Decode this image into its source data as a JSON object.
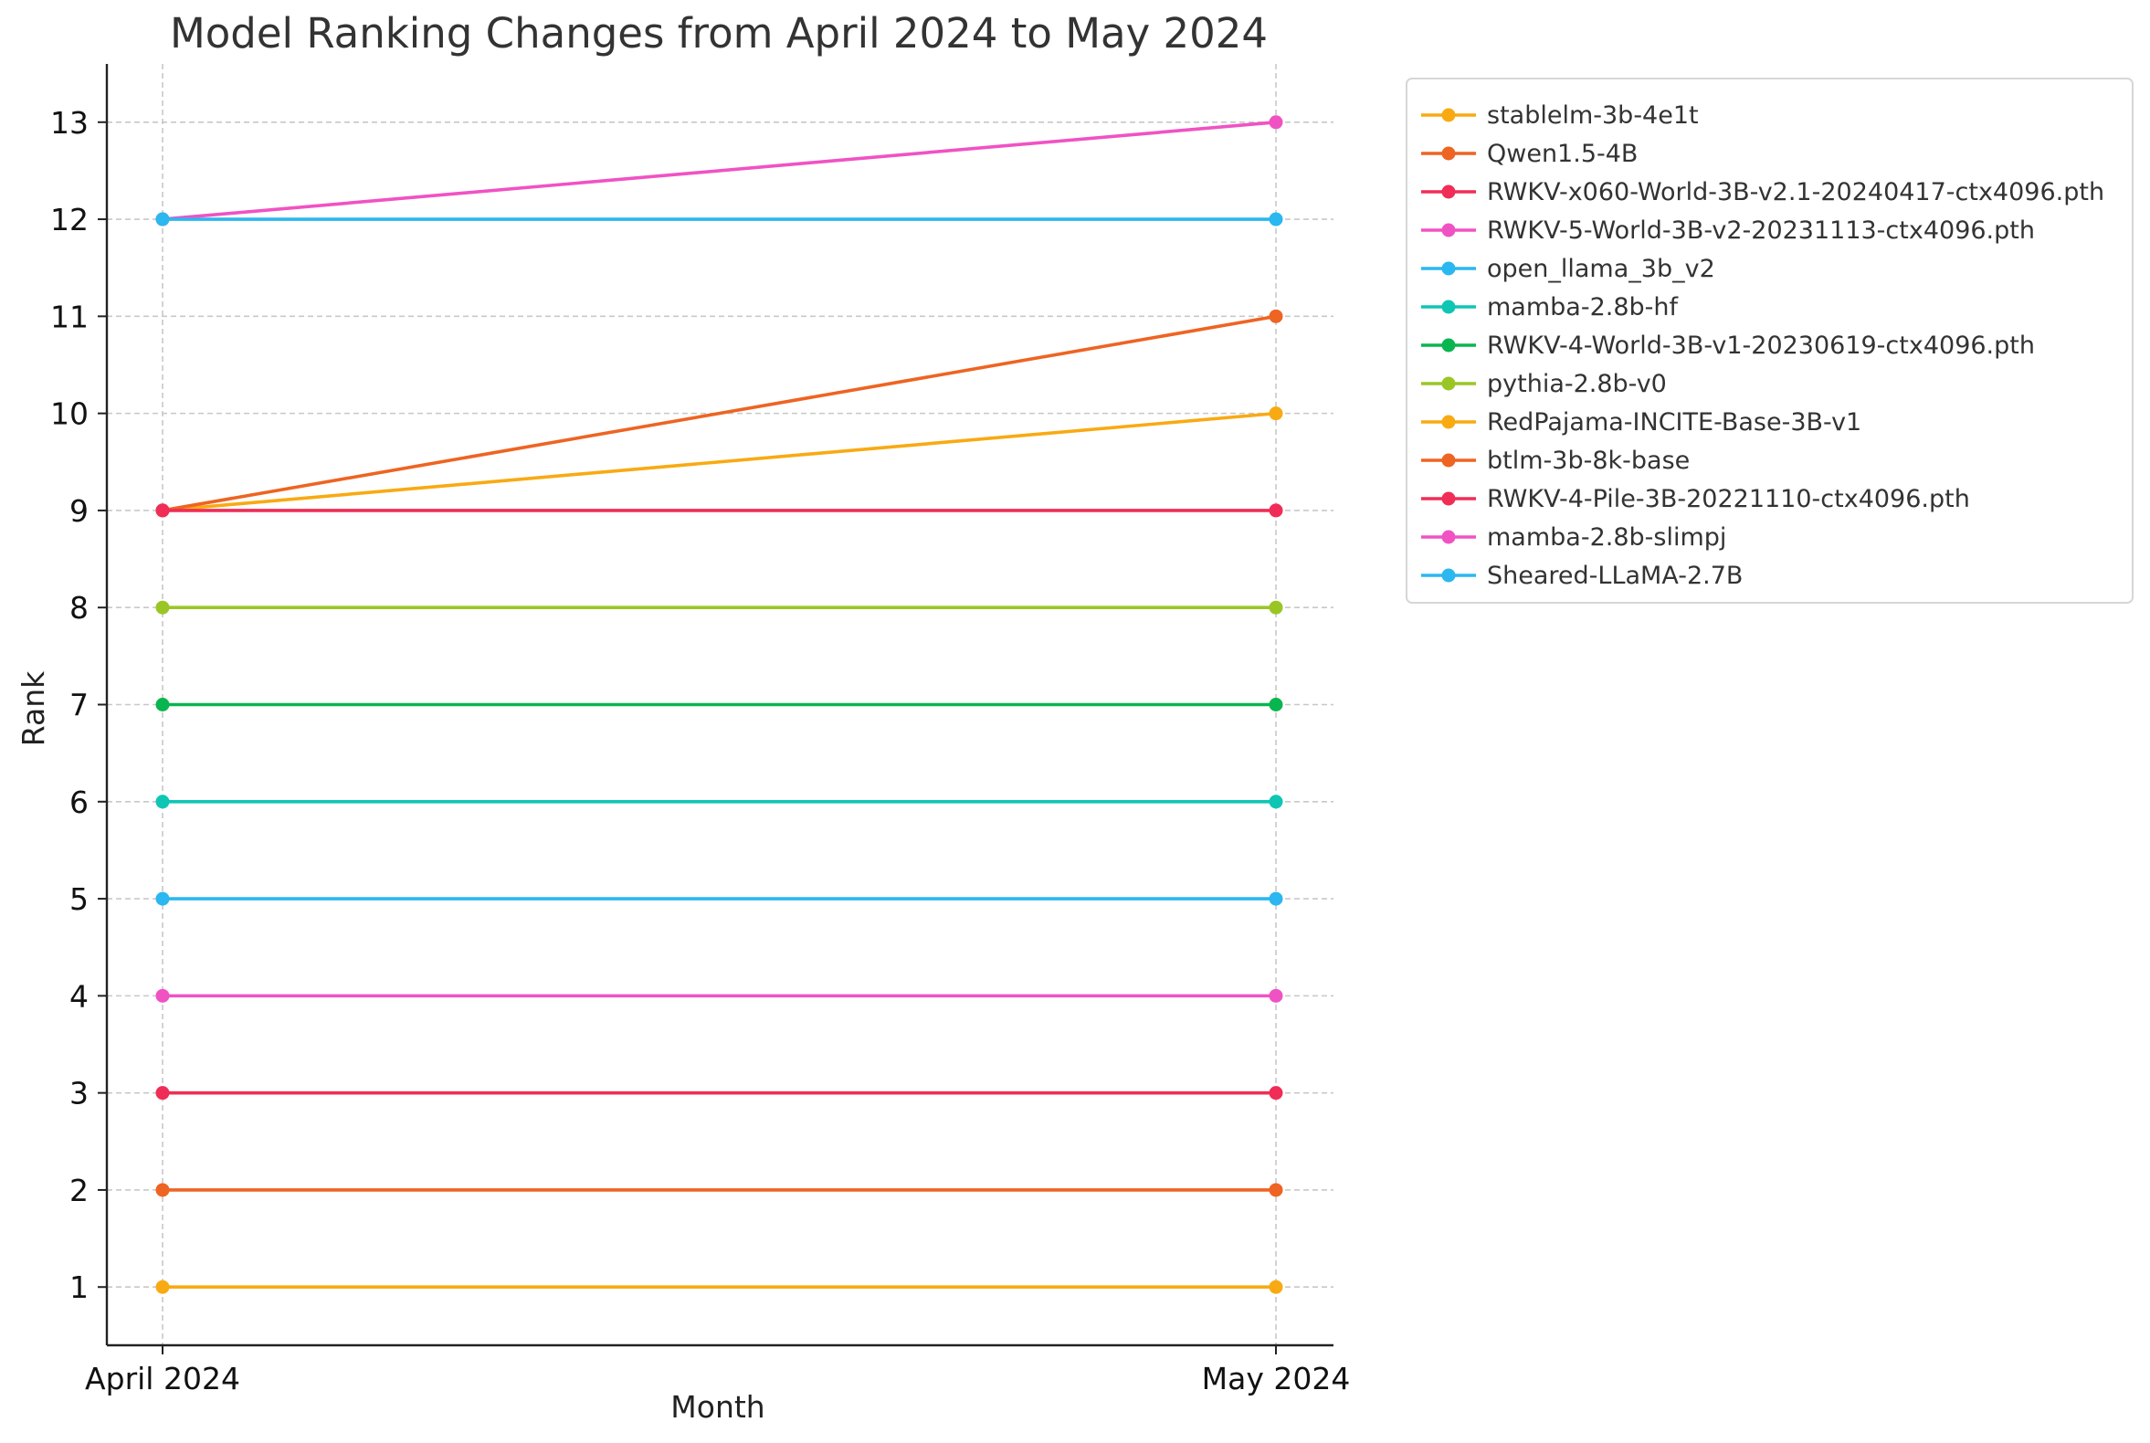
{
  "chart_data": {
    "type": "line",
    "title": "Model Ranking Changes from April 2024 to May 2024",
    "xlabel": "Month",
    "ylabel": "Rank",
    "categories": [
      "April 2024",
      "May 2024"
    ],
    "y_ticks": [
      "1",
      "2",
      "3",
      "4",
      "5",
      "6",
      "7",
      "8",
      "9",
      "10",
      "11",
      "12",
      "13"
    ],
    "ylim": [
      13.6,
      0.4
    ],
    "y_inverted": true,
    "grid": true,
    "legend_position": "outside-top-right",
    "series": [
      {
        "name": "stablelm-3b-4e1t",
        "color": "#f8aa13",
        "values": [
          1,
          1
        ]
      },
      {
        "name": "Qwen1.5-4B",
        "color": "#ee6422",
        "values": [
          2,
          2
        ]
      },
      {
        "name": "RWKV-x060-World-3B-v2.1-20240417-ctx4096.pth",
        "color": "#ef2d56",
        "values": [
          3,
          3
        ]
      },
      {
        "name": "RWKV-5-World-3B-v2-20231113-ctx4096.pth",
        "color": "#f052c4",
        "values": [
          4,
          4
        ]
      },
      {
        "name": "open_llama_3b_v2",
        "color": "#2bb7ef",
        "values": [
          5,
          5
        ]
      },
      {
        "name": "mamba-2.8b-hf",
        "color": "#0fc6b4",
        "values": [
          6,
          6
        ]
      },
      {
        "name": "RWKV-4-World-3B-v1-20230619-ctx4096.pth",
        "color": "#09b54f",
        "values": [
          7,
          7
        ]
      },
      {
        "name": "pythia-2.8b-v0",
        "color": "#9ac625",
        "values": [
          8,
          8
        ]
      },
      {
        "name": "RedPajama-INCITE-Base-3B-v1",
        "color": "#f8aa13",
        "values": [
          9,
          10
        ]
      },
      {
        "name": "btlm-3b-8k-base",
        "color": "#ee6422",
        "values": [
          9,
          11
        ]
      },
      {
        "name": "RWKV-4-Pile-3B-20221110-ctx4096.pth",
        "color": "#ef2d56",
        "values": [
          9,
          9
        ]
      },
      {
        "name": "mamba-2.8b-slimpj",
        "color": "#f052c4",
        "values": [
          12,
          13
        ]
      },
      {
        "name": "Sheared-LLaMA-2.7B",
        "color": "#2bb7ef",
        "values": [
          12,
          12
        ]
      }
    ]
  }
}
